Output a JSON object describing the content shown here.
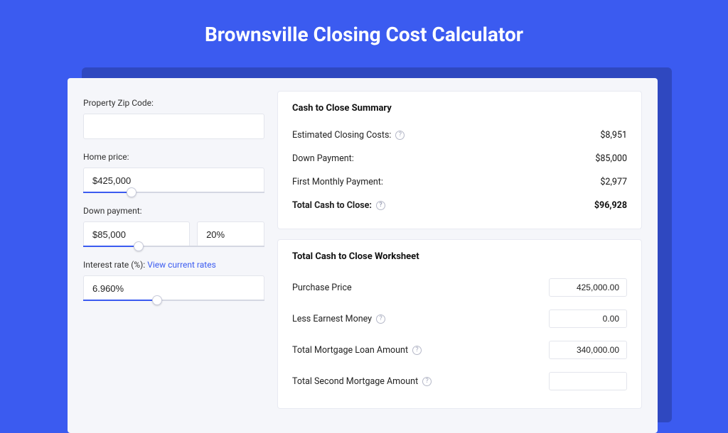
{
  "title": "Brownsville Closing Cost Calculator",
  "colors": {
    "page_bg": "#3b5bf0",
    "shadow": "#2f48c0",
    "card_bg": "#f5f6fa",
    "panel_bg": "#ffffff",
    "border": "#e3e5ec",
    "text": "#222222",
    "accent": "#3b5bf0"
  },
  "sidebar": {
    "zip": {
      "label": "Property Zip Code:",
      "value": ""
    },
    "price": {
      "label": "Home price:",
      "value": "$425,000",
      "slider_pct": 24
    },
    "down": {
      "label": "Down payment:",
      "amount": "$85,000",
      "percent": "20%",
      "slider_pct": 28
    },
    "rate": {
      "label_prefix": "Interest rate (%): ",
      "link_text": "View current rates",
      "value": "6.960%",
      "slider_pct": 38
    }
  },
  "summary": {
    "title": "Cash to Close Summary",
    "rows": [
      {
        "label": "Estimated Closing Costs:",
        "help": true,
        "value": "$8,951",
        "bold": false
      },
      {
        "label": "Down Payment:",
        "help": false,
        "value": "$85,000",
        "bold": false
      },
      {
        "label": "First Monthly Payment:",
        "help": false,
        "value": "$2,977",
        "bold": false
      },
      {
        "label": "Total Cash to Close:",
        "help": true,
        "value": "$96,928",
        "bold": true
      }
    ]
  },
  "worksheet": {
    "title": "Total Cash to Close Worksheet",
    "rows": [
      {
        "label": "Purchase Price",
        "help": false,
        "value": "425,000.00"
      },
      {
        "label": "Less Earnest Money",
        "help": true,
        "value": "0.00"
      },
      {
        "label": "Total Mortgage Loan Amount",
        "help": true,
        "value": "340,000.00"
      },
      {
        "label": "Total Second Mortgage Amount",
        "help": true,
        "value": ""
      }
    ]
  }
}
